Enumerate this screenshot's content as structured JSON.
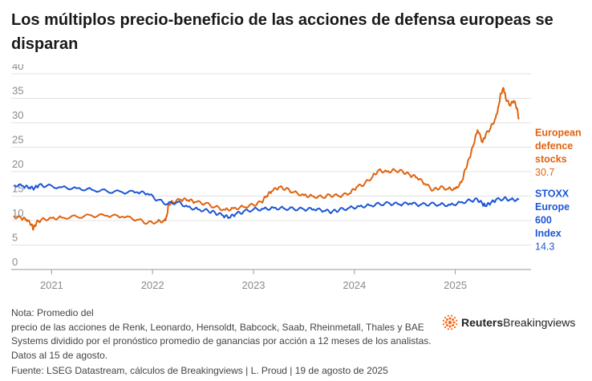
{
  "header": {
    "title": "Los múltiplos precio-beneficio de las acciones de defensa europeas se disparan"
  },
  "chart_data": {
    "type": "line",
    "ylim": [
      0,
      40
    ],
    "yticks": [
      0,
      5,
      10,
      15,
      20,
      25,
      30,
      35,
      40
    ],
    "xlim": [
      2020.6,
      2025.75
    ],
    "xticks": [
      {
        "label": "2021",
        "value": 2021.0
      },
      {
        "label": "2022",
        "value": 2022.0
      },
      {
        "label": "2023",
        "value": 2023.0
      },
      {
        "label": "2024",
        "value": 2024.0
      },
      {
        "label": "2025",
        "value": 2025.0
      }
    ],
    "series": [
      {
        "name": "European defence stocks",
        "label_lines": [
          "European",
          "defence",
          "stocks"
        ],
        "last_value": "30.7",
        "color": "#e0630e",
        "points": [
          [
            2020.63,
            10.8
          ],
          [
            2020.7,
            10.5
          ],
          [
            2020.75,
            10.2
          ],
          [
            2020.8,
            9.2
          ],
          [
            2020.82,
            8.3
          ],
          [
            2020.85,
            9.6
          ],
          [
            2020.9,
            10.2
          ],
          [
            2021.0,
            10.5
          ],
          [
            2021.1,
            10.6
          ],
          [
            2021.25,
            10.8
          ],
          [
            2021.4,
            11.0
          ],
          [
            2021.55,
            11.0
          ],
          [
            2021.7,
            10.8
          ],
          [
            2021.85,
            10.2
          ],
          [
            2021.95,
            9.5
          ],
          [
            2022.05,
            9.8
          ],
          [
            2022.12,
            10.0
          ],
          [
            2022.14,
            10.8
          ],
          [
            2022.16,
            13.4
          ],
          [
            2022.2,
            13.8
          ],
          [
            2022.28,
            14.3
          ],
          [
            2022.35,
            14.2
          ],
          [
            2022.42,
            13.8
          ],
          [
            2022.52,
            13.5
          ],
          [
            2022.62,
            12.8
          ],
          [
            2022.72,
            12.2
          ],
          [
            2022.8,
            12.5
          ],
          [
            2022.9,
            12.8
          ],
          [
            2023.0,
            13.2
          ],
          [
            2023.08,
            13.8
          ],
          [
            2023.13,
            15.0
          ],
          [
            2023.18,
            16.0
          ],
          [
            2023.25,
            16.8
          ],
          [
            2023.32,
            16.5
          ],
          [
            2023.4,
            15.8
          ],
          [
            2023.5,
            15.2
          ],
          [
            2023.58,
            15.0
          ],
          [
            2023.68,
            14.8
          ],
          [
            2023.76,
            15.2
          ],
          [
            2023.85,
            15.0
          ],
          [
            2023.95,
            15.5
          ],
          [
            2024.02,
            16.8
          ],
          [
            2024.1,
            17.5
          ],
          [
            2024.18,
            19.0
          ],
          [
            2024.24,
            20.3
          ],
          [
            2024.32,
            20.0
          ],
          [
            2024.4,
            20.3
          ],
          [
            2024.48,
            20.0
          ],
          [
            2024.55,
            19.3
          ],
          [
            2024.62,
            18.8
          ],
          [
            2024.7,
            17.5
          ],
          [
            2024.78,
            16.2
          ],
          [
            2024.85,
            16.8
          ],
          [
            2024.93,
            16.5
          ],
          [
            2025.0,
            16.5
          ],
          [
            2025.06,
            17.8
          ],
          [
            2025.1,
            20.5
          ],
          [
            2025.14,
            22.8
          ],
          [
            2025.18,
            25.5
          ],
          [
            2025.22,
            28.5
          ],
          [
            2025.27,
            26.0
          ],
          [
            2025.3,
            27.5
          ],
          [
            2025.35,
            29.0
          ],
          [
            2025.4,
            31.0
          ],
          [
            2025.43,
            33.5
          ],
          [
            2025.45,
            36.0
          ],
          [
            2025.48,
            37.0
          ],
          [
            2025.5,
            35.0
          ],
          [
            2025.54,
            33.5
          ],
          [
            2025.58,
            34.5
          ],
          [
            2025.61,
            33.0
          ],
          [
            2025.63,
            30.7
          ]
        ]
      },
      {
        "name": "STOXX Europe 600 Index",
        "label_lines": [
          "STOXX",
          "Europe",
          "600",
          "Index"
        ],
        "last_value": "14.3",
        "color": "#1d57d6",
        "points": [
          [
            2020.63,
            17.3
          ],
          [
            2020.72,
            17.0
          ],
          [
            2020.78,
            16.7
          ],
          [
            2020.83,
            16.6
          ],
          [
            2020.87,
            17.2
          ],
          [
            2020.95,
            17.1
          ],
          [
            2021.1,
            16.8
          ],
          [
            2021.25,
            16.6
          ],
          [
            2021.4,
            16.3
          ],
          [
            2021.55,
            16.0
          ],
          [
            2021.7,
            15.8
          ],
          [
            2021.85,
            15.8
          ],
          [
            2021.95,
            15.5
          ],
          [
            2022.05,
            14.2
          ],
          [
            2022.15,
            13.4
          ],
          [
            2022.25,
            13.8
          ],
          [
            2022.35,
            12.8
          ],
          [
            2022.45,
            12.3
          ],
          [
            2022.55,
            12.0
          ],
          [
            2022.62,
            11.6
          ],
          [
            2022.7,
            11.0
          ],
          [
            2022.76,
            10.6
          ],
          [
            2022.82,
            11.3
          ],
          [
            2022.9,
            11.8
          ],
          [
            2023.0,
            12.3
          ],
          [
            2023.1,
            12.4
          ],
          [
            2023.2,
            12.6
          ],
          [
            2023.3,
            12.5
          ],
          [
            2023.4,
            12.4
          ],
          [
            2023.5,
            12.3
          ],
          [
            2023.6,
            12.3
          ],
          [
            2023.7,
            12.0
          ],
          [
            2023.78,
            11.8
          ],
          [
            2023.85,
            12.2
          ],
          [
            2023.95,
            12.6
          ],
          [
            2024.05,
            12.9
          ],
          [
            2024.15,
            13.1
          ],
          [
            2024.25,
            13.4
          ],
          [
            2024.35,
            13.5
          ],
          [
            2024.45,
            13.3
          ],
          [
            2024.55,
            13.5
          ],
          [
            2024.65,
            13.2
          ],
          [
            2024.75,
            13.4
          ],
          [
            2024.85,
            13.3
          ],
          [
            2024.95,
            13.2
          ],
          [
            2025.05,
            13.7
          ],
          [
            2025.15,
            14.1
          ],
          [
            2025.22,
            14.3
          ],
          [
            2025.27,
            13.4
          ],
          [
            2025.3,
            13.0
          ],
          [
            2025.35,
            13.6
          ],
          [
            2025.4,
            14.2
          ],
          [
            2025.48,
            14.5
          ],
          [
            2025.55,
            14.3
          ],
          [
            2025.63,
            14.3
          ]
        ]
      }
    ]
  },
  "note_lines": [
    "Nota: Promedio del",
    "precio de las acciones de Renk, Leonardo, Hensoldt, Babcock, Saab, Rheinmetall, Thales y BAE",
    "Systems dividido por el pronóstico promedio de ganancias por acción a 12 meses de los analistas.",
    "Datos al 15 de agosto."
  ],
  "source": "Fuente: LSEG Datastream, cálculos de Breakingviews | L. Proud | 19 de agosto de 2025",
  "logo": {
    "brand": "Reuters",
    "product": "Breakingviews",
    "color": "#f26a1b"
  },
  "colors": {
    "grid": "#e1e1e1",
    "axis": "#9a9a9a",
    "tick_text": "#8a8a8a"
  }
}
